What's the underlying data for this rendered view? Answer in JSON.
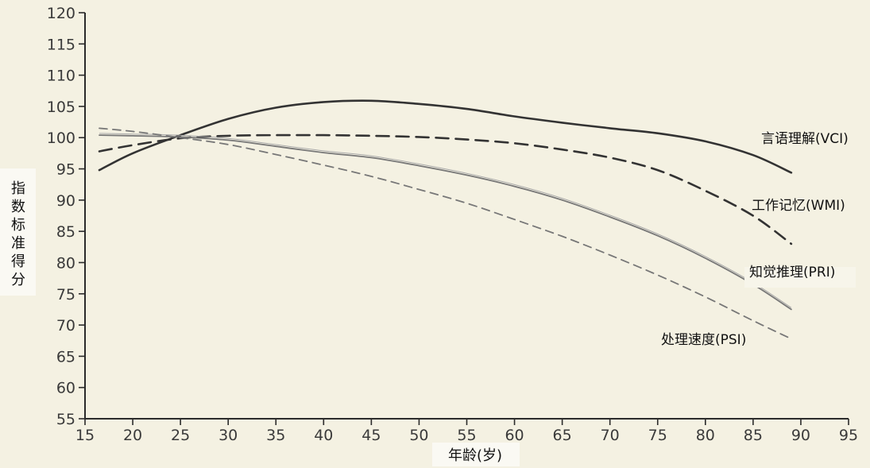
{
  "chart_data": {
    "type": "line",
    "xlabel": "年龄(岁)",
    "ylabel": "指数标准得分",
    "xlim": [
      15,
      95
    ],
    "ylim": [
      55,
      120
    ],
    "x_ticks": [
      15,
      20,
      25,
      30,
      35,
      40,
      45,
      50,
      55,
      60,
      65,
      70,
      75,
      80,
      85,
      90,
      95
    ],
    "y_ticks": [
      55,
      60,
      65,
      70,
      75,
      80,
      85,
      90,
      95,
      100,
      105,
      110,
      115,
      120
    ],
    "grid": false,
    "legend": "inline labels at line ends",
    "series": [
      {
        "name": "言语理解(VCI)",
        "color": "#333333",
        "dash": "solid-thick",
        "x": [
          16.5,
          20,
          25,
          30,
          35,
          40,
          45,
          50,
          55,
          60,
          65,
          70,
          75,
          80,
          85,
          89
        ],
        "y": [
          94.8,
          97.5,
          100.4,
          103,
          104.8,
          105.7,
          105.9,
          105.4,
          104.6,
          103.4,
          102.4,
          101.5,
          100.7,
          99.4,
          97.2,
          94.4
        ]
      },
      {
        "name": "工作记忆(WMI)",
        "color": "#333333",
        "dash": "long-dash",
        "x": [
          16.5,
          20,
          25,
          30,
          35,
          40,
          45,
          50,
          55,
          60,
          65,
          70,
          75,
          80,
          85,
          89
        ],
        "y": [
          97.8,
          98.8,
          99.9,
          100.3,
          100.4,
          100.4,
          100.3,
          100.1,
          99.7,
          99.1,
          98.1,
          96.8,
          94.8,
          91.5,
          87.5,
          83
        ]
      },
      {
        "name": "知觉推理(PRI)",
        "color": "#777777",
        "dash": "solid-thin",
        "x": [
          16.5,
          20,
          25,
          30,
          35,
          40,
          45,
          50,
          55,
          60,
          65,
          70,
          75,
          80,
          85,
          89
        ],
        "y": [
          100.4,
          100.3,
          100.1,
          99.6,
          98.6,
          97.6,
          96.8,
          95.5,
          94,
          92.2,
          90,
          87.3,
          84.3,
          80.7,
          76.5,
          72.5
        ]
      },
      {
        "name": "处理速度(PSI)",
        "color": "#777777",
        "dash": "short-dash",
        "x": [
          16.5,
          20,
          25,
          30,
          35,
          40,
          45,
          50,
          55,
          60,
          65,
          70,
          75,
          80,
          85,
          89
        ],
        "y": [
          101.5,
          101,
          100,
          98.9,
          97.3,
          95.6,
          93.8,
          91.7,
          89.5,
          86.9,
          84.2,
          81.2,
          78,
          74.5,
          70.7,
          67.8
        ]
      }
    ],
    "annotations": [
      {
        "text": "言语理解(VCI)",
        "series": 0
      },
      {
        "text": "工作记忆(WMI)",
        "series": 1
      },
      {
        "text": "知觉推理(PRI)",
        "series": 2
      },
      {
        "text": "处理速度(PSI)",
        "series": 3
      }
    ]
  }
}
